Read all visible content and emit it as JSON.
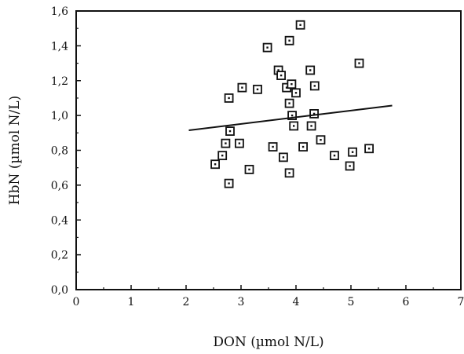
{
  "chart_data": {
    "type": "scatter",
    "title": "",
    "xlabel": "DON (µmol N/L)",
    "ylabel": "HbN (µmol N/L)",
    "xlim": [
      0,
      7
    ],
    "ylim": [
      0,
      1.6
    ],
    "x_ticks": [
      "0",
      "1",
      "2",
      "3",
      "4",
      "5",
      "6",
      "7"
    ],
    "y_ticks": [
      "0,0",
      "0,2",
      "0,4",
      "0,6",
      "0,8",
      "1,0",
      "1,2",
      "1,4",
      "1,6"
    ],
    "grid": false,
    "series": [
      {
        "points": [
          [
            2.53,
            0.72
          ],
          [
            2.66,
            0.77
          ],
          [
            2.72,
            0.84
          ],
          [
            2.78,
            0.61
          ],
          [
            2.8,
            0.91
          ],
          [
            2.78,
            1.1
          ],
          [
            2.97,
            0.84
          ],
          [
            3.02,
            1.16
          ],
          [
            3.15,
            0.69
          ],
          [
            3.3,
            1.15
          ],
          [
            3.48,
            1.39
          ],
          [
            3.58,
            0.82
          ],
          [
            3.68,
            1.26
          ],
          [
            3.73,
            1.23
          ],
          [
            3.77,
            0.76
          ],
          [
            3.83,
            1.16
          ],
          [
            3.88,
            1.43
          ],
          [
            3.88,
            1.07
          ],
          [
            3.88,
            0.67
          ],
          [
            3.92,
            1.18
          ],
          [
            3.93,
            1.0
          ],
          [
            3.96,
            0.94
          ],
          [
            4.0,
            1.13
          ],
          [
            4.08,
            1.52
          ],
          [
            4.13,
            0.82
          ],
          [
            4.26,
            1.26
          ],
          [
            4.28,
            0.94
          ],
          [
            4.33,
            1.01
          ],
          [
            4.34,
            1.17
          ],
          [
            4.45,
            0.86
          ],
          [
            4.7,
            0.77
          ],
          [
            4.98,
            0.71
          ],
          [
            5.03,
            0.79
          ],
          [
            5.15,
            1.3
          ],
          [
            5.33,
            0.81
          ]
        ]
      }
    ],
    "trendline": {
      "x": [
        2.05,
        5.75
      ],
      "y": [
        0.915,
        1.057
      ]
    }
  }
}
